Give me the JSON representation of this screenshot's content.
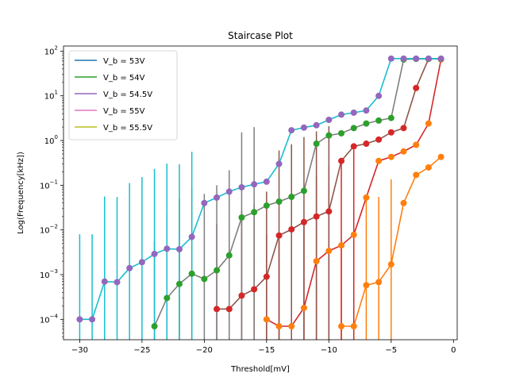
{
  "chart_data": {
    "type": "line",
    "title": "Staircase Plot",
    "xlabel": "Threshold[mV]",
    "ylabel": "Log(Frequency[kHz])",
    "yscale": "log",
    "xlim": [
      -31.3,
      0.3
    ],
    "ylim": [
      3.5e-05,
      130
    ],
    "xticks": [
      -30,
      -25,
      -20,
      -15,
      -10,
      -5,
      0
    ],
    "xtick_labels": [
      "−30",
      "−25",
      "−20",
      "−15",
      "−10",
      "−5",
      "0"
    ],
    "yticks": [
      0.0001,
      0.001,
      0.01,
      0.1,
      1,
      10,
      100
    ],
    "ytick_labels": [
      "10",
      "10",
      "10",
      "10",
      "10",
      "10",
      "10"
    ],
    "ytick_exponents": [
      "−4",
      "−3",
      "−2",
      "−1",
      "0",
      "1",
      "2"
    ],
    "grid": false,
    "legend_position": "top-left",
    "legend": [
      {
        "label": "V_b = 53V",
        "color": "#1f77b4"
      },
      {
        "label": "V_b = 54V",
        "color": "#2ca02c"
      },
      {
        "label": "V_b = 54.5V",
        "color": "#9467bd"
      },
      {
        "label": "V_b = 55V",
        "color": "#e377c2"
      },
      {
        "label": "V_b = 55.5V",
        "color": "#bcbd22"
      }
    ],
    "series": [
      {
        "line_color": "#ff7f0e",
        "marker_color": "#ff7f0e",
        "errbar_color": "#ff7f0e",
        "x": [
          -9,
          -8,
          -7,
          -6,
          -5,
          -4,
          -3,
          -2,
          -1
        ],
        "y": [
          7e-05,
          7e-05,
          0.00058,
          0.00068,
          0.0017,
          0.04,
          0.17,
          0.25,
          0.43
        ]
      },
      {
        "line_color": "#d62728",
        "marker_color": "#ff7f0e",
        "errbar_color": "#d62728",
        "x": [
          -15,
          -14,
          -13,
          -12,
          -11,
          -10,
          -9,
          -8,
          -7,
          -6,
          -5,
          -4,
          -3,
          -2,
          -1
        ],
        "y": [
          0.0001,
          7e-05,
          7e-05,
          0.00018,
          0.002,
          0.0034,
          0.0045,
          0.0078,
          0.053,
          0.35,
          0.43,
          0.57,
          0.8,
          2.4,
          65
        ]
      },
      {
        "line_color": "#8c564b",
        "marker_color": "#d62728",
        "errbar_color": "#8c564b",
        "x": [
          -19,
          -18,
          -17,
          -16,
          -15,
          -14,
          -13,
          -12,
          -11,
          -10,
          -9,
          -8,
          -7,
          -6,
          -5,
          -4,
          -3,
          -2,
          -1
        ],
        "y": [
          0.00017,
          0.00017,
          0.00034,
          0.00047,
          0.0009,
          0.0075,
          0.0103,
          0.015,
          0.02,
          0.026,
          0.35,
          0.74,
          0.85,
          1.05,
          1.52,
          1.9,
          15,
          67,
          67
        ]
      },
      {
        "line_color": "#7f7f7f",
        "marker_color": "#2ca02c",
        "errbar_color": "#7f7f7f",
        "x": [
          -24,
          -23,
          -22,
          -21,
          -20,
          -19,
          -18,
          -17,
          -16,
          -15,
          -14,
          -13,
          -12,
          -11,
          -10,
          -9,
          -8,
          -7,
          -6,
          -5,
          -4,
          -3,
          -2,
          -1
        ],
        "y": [
          7e-05,
          0.0003,
          0.00062,
          0.00105,
          0.0008,
          0.00125,
          0.0027,
          0.019,
          0.025,
          0.035,
          0.043,
          0.055,
          0.075,
          0.85,
          1.3,
          1.45,
          1.9,
          2.4,
          2.8,
          3.2,
          65,
          67,
          67,
          67
        ]
      },
      {
        "line_color": "#17becf",
        "marker_color": "#9467bd",
        "errbar_color": "#17becf",
        "x": [
          -30,
          -29,
          -28,
          -27,
          -26,
          -25,
          -24,
          -23,
          -22,
          -21,
          -20,
          -19,
          -18,
          -17,
          -16,
          -15,
          -14,
          -13,
          -12,
          -11,
          -10,
          -9,
          -8,
          -7,
          -6,
          -5,
          -4,
          -3,
          -2,
          -1
        ],
        "y": [
          0.0001,
          0.0001,
          0.0007,
          0.00068,
          0.0014,
          0.0019,
          0.0029,
          0.0038,
          0.0037,
          0.007,
          0.04,
          0.053,
          0.072,
          0.09,
          0.105,
          0.12,
          0.3,
          1.7,
          1.95,
          2.2,
          2.9,
          3.8,
          4.2,
          4.7,
          10,
          68,
          68,
          68,
          68,
          68
        ]
      }
    ]
  }
}
